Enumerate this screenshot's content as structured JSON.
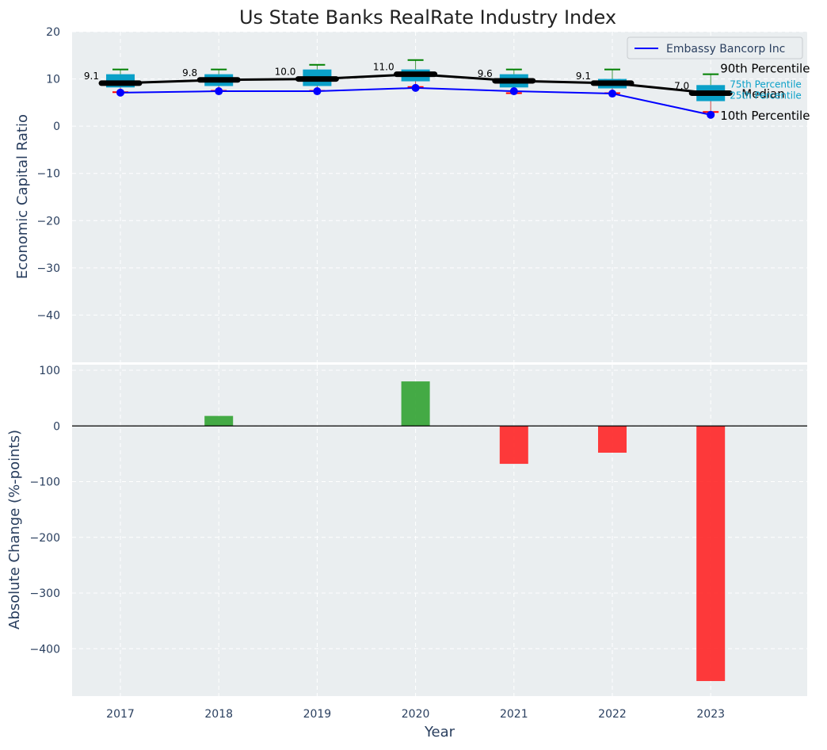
{
  "chart_data": [
    {
      "type": "box",
      "title": "Us State Banks RealRate Industry Index",
      "ylabel": "Economic Capital Ratio",
      "xlabel": "",
      "ylim": [
        -50,
        20
      ],
      "yticks": [
        -40,
        -30,
        -20,
        -10,
        0,
        10,
        20
      ],
      "categories": [
        "2017",
        "2018",
        "2019",
        "2020",
        "2021",
        "2022",
        "2023"
      ],
      "boxes": [
        {
          "year": "2017",
          "p10": 7.2,
          "p25": 8.2,
          "median": 9.1,
          "p75": 11.0,
          "p90": 12.0,
          "median_label": "9.1"
        },
        {
          "year": "2018",
          "p10": 7.5,
          "p25": 8.5,
          "median": 9.8,
          "p75": 11.0,
          "p90": 12.0,
          "median_label": "9.8"
        },
        {
          "year": "2019",
          "p10": 7.5,
          "p25": 8.5,
          "median": 10.0,
          "p75": 12.0,
          "p90": 13.0,
          "median_label": "10.0"
        },
        {
          "year": "2020",
          "p10": 8.3,
          "p25": 9.5,
          "median": 11.0,
          "p75": 12.0,
          "p90": 14.0,
          "median_label": "11.0"
        },
        {
          "year": "2021",
          "p10": 7.0,
          "p25": 8.2,
          "median": 9.6,
          "p75": 11.0,
          "p90": 12.0,
          "median_label": "9.6"
        },
        {
          "year": "2022",
          "p10": 7.0,
          "p25": 8.0,
          "median": 9.1,
          "p75": 10.0,
          "p90": 12.0,
          "median_label": "9.1"
        },
        {
          "year": "2023",
          "p10": 3.0,
          "p25": 5.3,
          "median": 7.0,
          "p75": 8.7,
          "p90": 11.0,
          "median_label": "7.0"
        }
      ],
      "series": [
        {
          "name": "Embassy Bancorp Inc",
          "values": [
            7.1,
            7.4,
            7.4,
            8.1,
            7.4,
            6.9,
            2.4
          ]
        }
      ],
      "legend": {
        "position": "top-right",
        "entries": [
          "Embassy Bancorp Inc"
        ]
      },
      "annotations": {
        "p90": "90th Percentile",
        "p75": "75th Percentile",
        "median": "Median",
        "p25": "25th Percentile",
        "p10": "10th Percentile"
      },
      "grid": true
    },
    {
      "type": "bar",
      "title": "",
      "ylabel": "Absolute Change (%-points)",
      "xlabel": "Year",
      "ylim": [
        -485,
        110
      ],
      "yticks": [
        -400,
        -300,
        -200,
        -100,
        0,
        100
      ],
      "categories": [
        "2017",
        "2018",
        "2019",
        "2020",
        "2021",
        "2022",
        "2023"
      ],
      "values": [
        0,
        18,
        0,
        80,
        -68,
        -48,
        -458
      ],
      "positive_color": "#2ca02c",
      "negative_color": "#ff2020",
      "grid": true
    }
  ],
  "colors": {
    "plot_bg": "#eaeef0",
    "box_fill": "#0aa0c8",
    "median_line": "#000000",
    "company_line": "#0000ff",
    "whisker_top": "#008000",
    "whisker_bottom": "#ff0000",
    "text": "#2a3f5f"
  }
}
